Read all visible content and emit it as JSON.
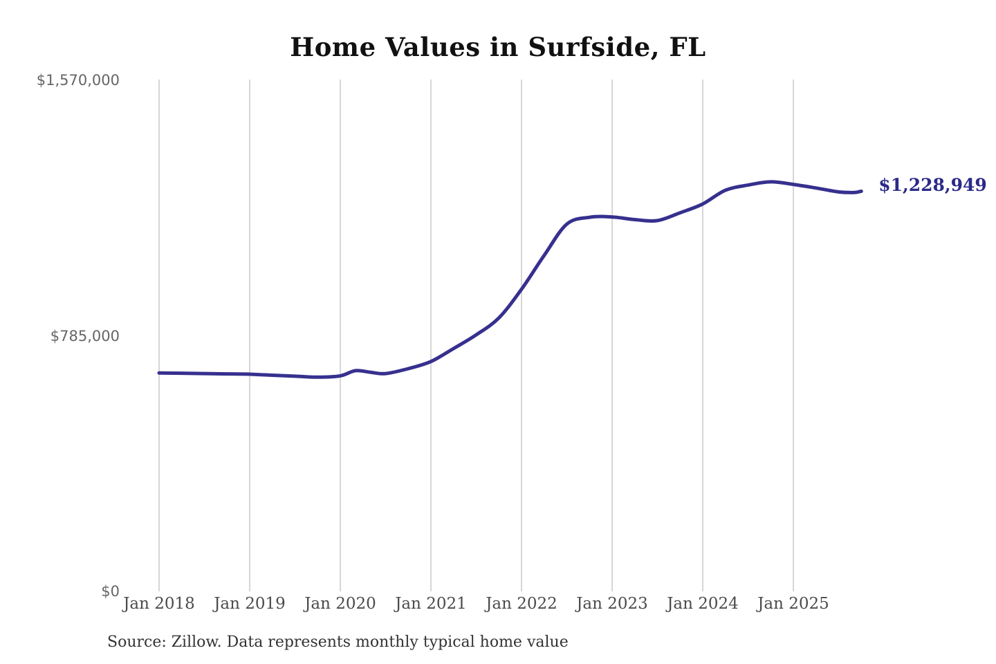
{
  "chart": {
    "title": "Home Values in Surfside, FL",
    "source_note": "Source: Zillow. Data represents monthly typical home value",
    "end_value_label": "$1,228,949"
  },
  "colors": {
    "background": "#FFFFFF",
    "line": "#36308E",
    "end_label": "#2B2A88",
    "grid": "#C9C9C9",
    "y_tick_text": "#666666",
    "x_tick_text": "#4B4B4B",
    "title_text": "#111111",
    "source_text": "#333333"
  },
  "chart_data": {
    "type": "line",
    "title": "Home Values in Surfside, FL",
    "xlabel": "",
    "ylabel": "",
    "ylim": [
      0,
      1570000
    ],
    "x_range_months": [
      0,
      93
    ],
    "grid": "vertical-only",
    "legend": "none",
    "y_ticks": [
      {
        "value": 1570000,
        "label": "$1,570,000"
      },
      {
        "value": 785000,
        "label": "$785,000"
      },
      {
        "value": 0,
        "label": "$0"
      }
    ],
    "x_ticks": [
      {
        "date": "2018-01",
        "label": "Jan 2018"
      },
      {
        "date": "2019-01",
        "label": "Jan 2019"
      },
      {
        "date": "2020-01",
        "label": "Jan 2020"
      },
      {
        "date": "2021-01",
        "label": "Jan 2021"
      },
      {
        "date": "2022-01",
        "label": "Jan 2022"
      },
      {
        "date": "2023-01",
        "label": "Jan 2023"
      },
      {
        "date": "2024-01",
        "label": "Jan 2024"
      },
      {
        "date": "2025-01",
        "label": "Jan 2025"
      }
    ],
    "series": [
      {
        "name": "Monthly typical home value",
        "final_value": 1228949,
        "points": [
          {
            "date": "2018-01",
            "value": 671000
          },
          {
            "date": "2018-04",
            "value": 670000
          },
          {
            "date": "2018-07",
            "value": 669000
          },
          {
            "date": "2018-10",
            "value": 668000
          },
          {
            "date": "2019-01",
            "value": 667000
          },
          {
            "date": "2019-04",
            "value": 664000
          },
          {
            "date": "2019-07",
            "value": 661000
          },
          {
            "date": "2019-10",
            "value": 658000
          },
          {
            "date": "2020-01",
            "value": 662000
          },
          {
            "date": "2020-03",
            "value": 678000
          },
          {
            "date": "2020-05",
            "value": 673000
          },
          {
            "date": "2020-07",
            "value": 669000
          },
          {
            "date": "2020-10",
            "value": 684000
          },
          {
            "date": "2021-01",
            "value": 706000
          },
          {
            "date": "2021-04",
            "value": 746000
          },
          {
            "date": "2021-07",
            "value": 788000
          },
          {
            "date": "2021-10",
            "value": 840000
          },
          {
            "date": "2022-01",
            "value": 928000
          },
          {
            "date": "2022-04",
            "value": 1032000
          },
          {
            "date": "2022-07",
            "value": 1128000
          },
          {
            "date": "2022-10",
            "value": 1149000
          },
          {
            "date": "2023-01",
            "value": 1150000
          },
          {
            "date": "2023-04",
            "value": 1142000
          },
          {
            "date": "2023-07",
            "value": 1139000
          },
          {
            "date": "2023-10",
            "value": 1163000
          },
          {
            "date": "2024-01",
            "value": 1190000
          },
          {
            "date": "2024-04",
            "value": 1232000
          },
          {
            "date": "2024-07",
            "value": 1248000
          },
          {
            "date": "2024-10",
            "value": 1258000
          },
          {
            "date": "2025-01",
            "value": 1250000
          },
          {
            "date": "2025-04",
            "value": 1239000
          },
          {
            "date": "2025-07",
            "value": 1227000
          },
          {
            "date": "2025-09",
            "value": 1225000
          },
          {
            "date": "2025-10",
            "value": 1228949
          }
        ]
      }
    ]
  }
}
